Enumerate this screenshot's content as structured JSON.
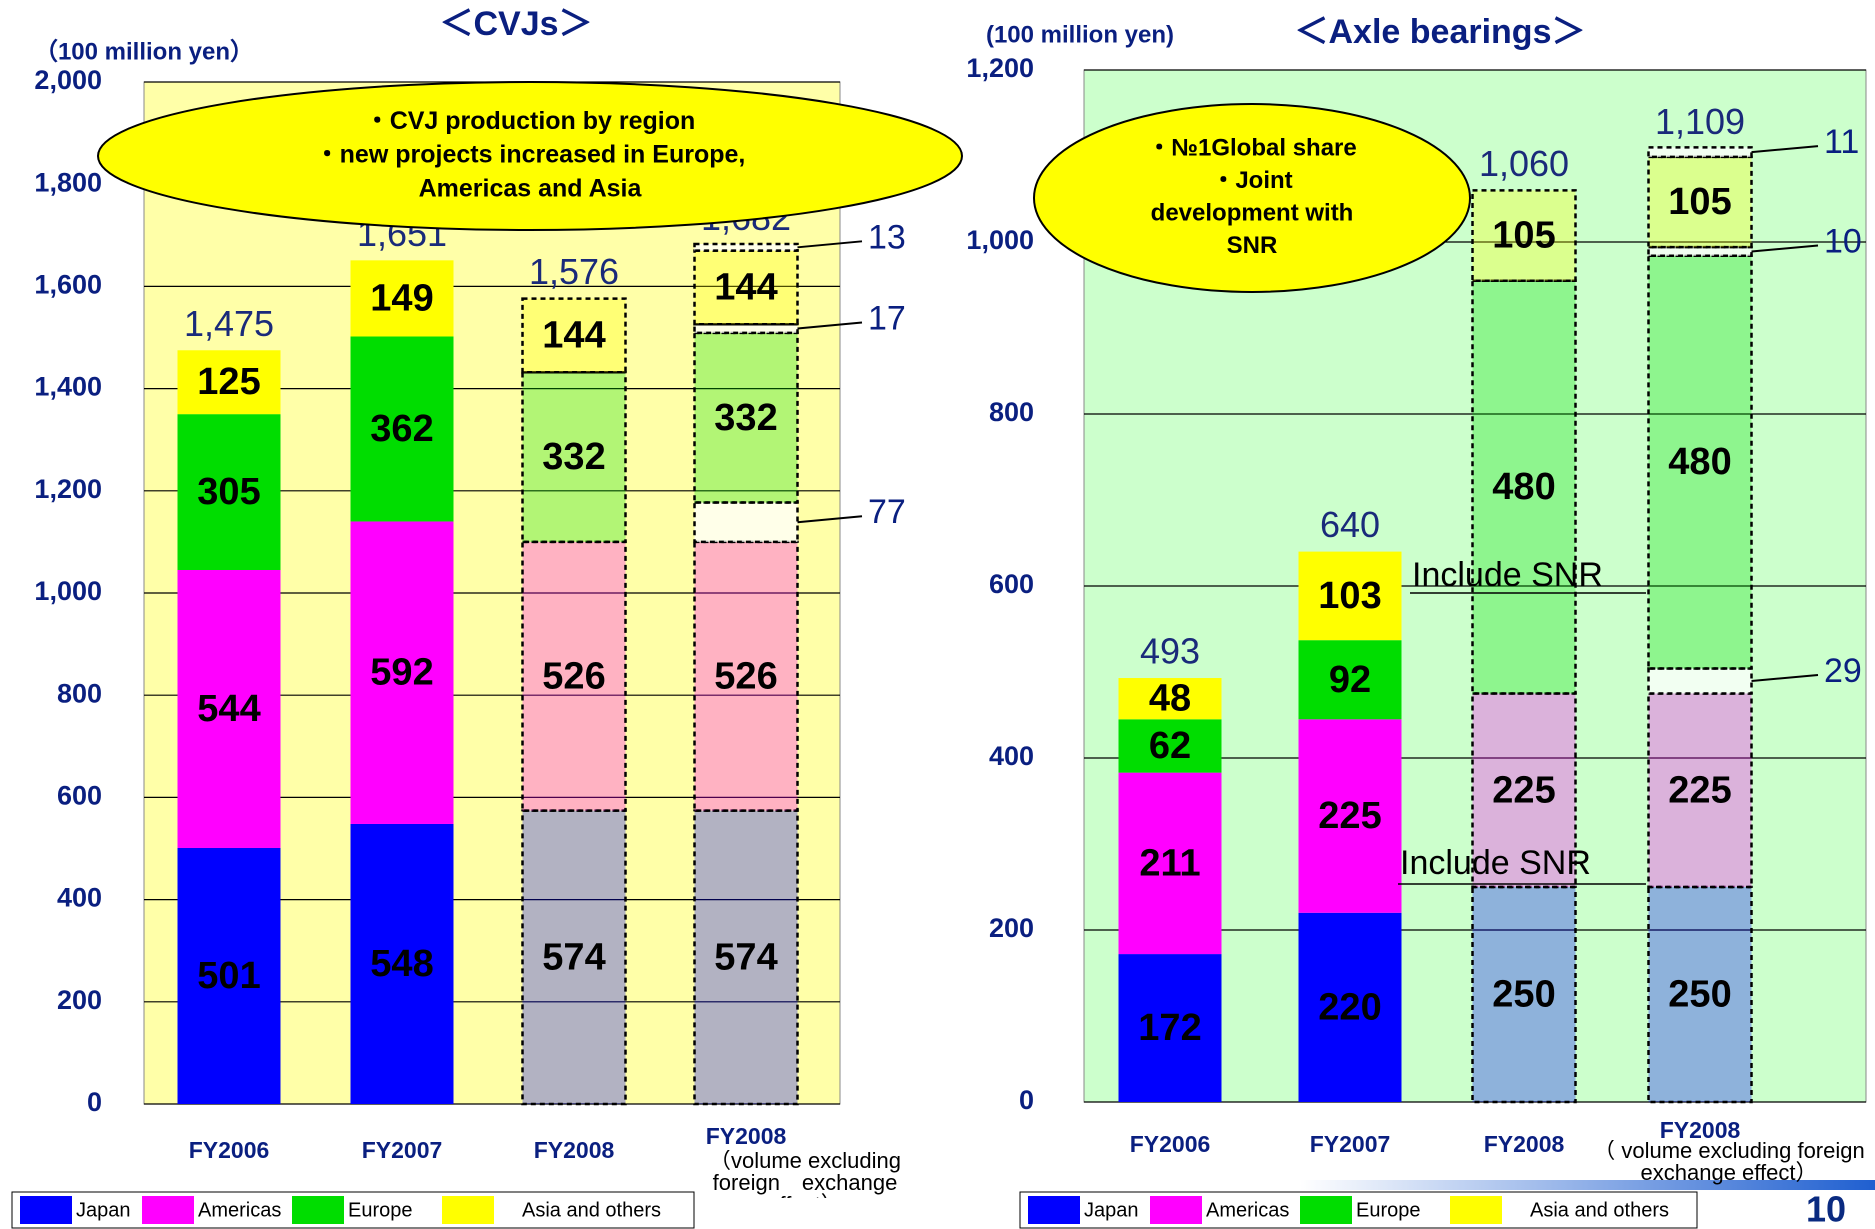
{
  "page_number": 10,
  "chart_data": [
    {
      "type": "bar",
      "stacked": true,
      "title": "＜CVJs＞",
      "y_label": "（100 million yen）",
      "categories": [
        "FY2006",
        "FY2007",
        "FY2008",
        "FY2008"
      ],
      "category_note": "（volume excluding foreign　exchange effect）",
      "ylim": [
        0,
        2000
      ],
      "yticks": [
        0,
        200,
        400,
        600,
        800,
        {
          "value": 1000,
          "label": "1,000"
        },
        {
          "value": 1200,
          "label": "1,200"
        },
        {
          "value": 1400,
          "label": "1,400"
        },
        {
          "value": 1600,
          "label": "1,600"
        },
        {
          "value": 1800,
          "label": "1,800"
        },
        {
          "value": 2000,
          "label": "2,000"
        }
      ],
      "grid": true,
      "background": "#ffffa8",
      "dashed": [
        false,
        false,
        true,
        true
      ],
      "series": [
        {
          "name": "Japan",
          "color": "#0000ff",
          "values": [
            501,
            548,
            574,
            574
          ]
        },
        {
          "name": "Americas",
          "color": "#ff00ff",
          "values": [
            544,
            592,
            526,
            526
          ]
        },
        {
          "color": "#ffffff",
          "callout": true,
          "values": [
            null,
            null,
            null,
            77
          ]
        },
        {
          "name": "Europe",
          "color": "#00dd00",
          "values": [
            305,
            362,
            332,
            332
          ]
        },
        {
          "color": "#ffffff",
          "callout": true,
          "values": [
            null,
            null,
            null,
            17
          ]
        },
        {
          "name": "Asia and others",
          "color": "#ffff00",
          "values": [
            125,
            149,
            144,
            144
          ]
        },
        {
          "color": "#ffffff",
          "callout": true,
          "values": [
            null,
            null,
            null,
            13
          ]
        }
      ],
      "totals": {
        "values": [
          1475,
          1651,
          1576,
          1682
        ],
        "value_labels": [
          "1,475",
          "1,651",
          "1,576",
          "1,682"
        ]
      },
      "bubble_lines": [
        "・CVJ production by region",
        "・new projects increased in Europe,",
        "Americas and Asia"
      ]
    },
    {
      "type": "bar",
      "stacked": true,
      "title": "＜Axle bearings＞",
      "y_label": "(100 million yen)",
      "categories": [
        "FY2006",
        "FY2007",
        "FY2008",
        "FY2008"
      ],
      "category_note": "（ volume excluding foreign exchange effect）",
      "ylim": [
        0,
        1200
      ],
      "yticks": [
        0,
        200,
        400,
        600,
        800,
        {
          "value": 1000,
          "label": "1,000"
        },
        {
          "value": 1200,
          "label": "1,200"
        }
      ],
      "grid": true,
      "background": "#ccffcc",
      "dashed": [
        false,
        false,
        true,
        true
      ],
      "series": [
        {
          "name": "Japan",
          "color": "#0000ff",
          "values": [
            172,
            220,
            250,
            250
          ]
        },
        {
          "name": "Americas",
          "color": "#ff00ff",
          "values": [
            211,
            225,
            225,
            225
          ]
        },
        {
          "color": "#ffffff",
          "callout": true,
          "values": [
            null,
            null,
            null,
            29
          ]
        },
        {
          "name": "Europe",
          "color": "#00dd00",
          "values": [
            62,
            92,
            480,
            480
          ]
        },
        {
          "color": "#ffffff",
          "callout": true,
          "values": [
            null,
            null,
            null,
            10
          ]
        },
        {
          "name": "Asia and others",
          "color": "#ffff00",
          "values": [
            48,
            103,
            105,
            105
          ]
        },
        {
          "color": "#ffffff",
          "callout": true,
          "values": [
            null,
            null,
            null,
            11
          ]
        }
      ],
      "totals": {
        "values": [
          493,
          640,
          1060,
          1109
        ],
        "value_labels": [
          "493",
          "640",
          "1,060",
          "1,109"
        ]
      },
      "bubble_lines": [
        "・№1Global share",
        "・Joint",
        "development with",
        "SNR"
      ],
      "annotations": [
        "Include SNR",
        "Include SNR"
      ]
    }
  ]
}
